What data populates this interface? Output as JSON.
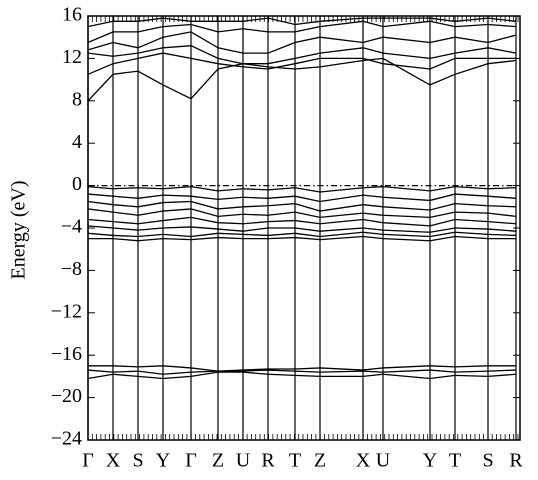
{
  "chart_data": {
    "type": "line",
    "ylabel": "Energy (eV)",
    "xlim": [
      0,
      432
    ],
    "ylim": [
      -24,
      16
    ],
    "yticks": [
      {
        "value": -24,
        "label": "−24"
      },
      {
        "value": -20,
        "label": "−20"
      },
      {
        "value": -16,
        "label": "−16"
      },
      {
        "value": -12,
        "label": "−12"
      },
      {
        "value": -8,
        "label": "−8"
      },
      {
        "value": -4,
        "label": "−4"
      },
      0,
      4,
      8,
      12,
      16
    ],
    "xticks": [
      {
        "value": 0,
        "label": "Γ"
      },
      {
        "value": 25,
        "label": "X"
      },
      {
        "value": 50,
        "label": "S"
      },
      {
        "value": 75,
        "label": "Y"
      },
      {
        "value": 103,
        "label": "Γ"
      },
      {
        "value": 130,
        "label": "Z"
      },
      {
        "value": 155,
        "label": "U"
      },
      {
        "value": 180,
        "label": "R"
      },
      {
        "value": 207,
        "label": "T"
      },
      {
        "value": 232,
        "label": "Z"
      },
      {
        "value": 275,
        "label": "X"
      },
      {
        "value": 295,
        "label": "U"
      },
      {
        "value": 342,
        "label": "Y"
      },
      {
        "value": 367,
        "label": "T"
      },
      {
        "value": 400,
        "label": "S"
      },
      {
        "value": 428,
        "label": "R"
      }
    ],
    "hline": 0,
    "x": [
      0,
      25,
      50,
      75,
      103,
      130,
      155,
      180,
      207,
      232,
      275,
      295,
      342,
      367,
      400,
      428
    ],
    "series": [
      {
        "color": "#000000",
        "values": [
          8,
          10.5,
          10.8,
          9.5,
          8.2,
          11,
          11.5,
          11.2,
          11,
          11.2,
          11.8,
          12,
          9.5,
          10.5,
          11.5,
          11.8
        ]
      },
      {
        "color": "#000000",
        "values": [
          10.5,
          11.5,
          12,
          12.5,
          12,
          11.5,
          11.2,
          11,
          11.5,
          12,
          12,
          11.5,
          11,
          12,
          12,
          12
        ]
      },
      {
        "color": "#000000",
        "values": [
          12.5,
          12.2,
          12.5,
          13,
          13.2,
          12,
          11.5,
          11.5,
          12,
          12.5,
          13,
          12.5,
          12,
          12.5,
          13,
          12.5
        ]
      },
      {
        "color": "#000000",
        "values": [
          12.8,
          13.5,
          13,
          14,
          14.5,
          13,
          12.5,
          12.5,
          13.5,
          14,
          13.5,
          14,
          13.5,
          14,
          13.5,
          14.2
        ]
      },
      {
        "color": "#000000",
        "values": [
          13.5,
          14.5,
          14.5,
          15,
          15.2,
          14.5,
          14.8,
          14.5,
          14.5,
          15,
          15.5,
          15,
          15.5,
          15,
          15.2,
          15
        ]
      },
      {
        "color": "#000000",
        "values": [
          15,
          15.5,
          15.5,
          15.8,
          15.5,
          15.5,
          15.5,
          15.8,
          15.2,
          15.5,
          15.8,
          15.8,
          15.8,
          15.5,
          15.8,
          15.5
        ]
      },
      {
        "color": "#000000",
        "values": [
          -0.1,
          -0.3,
          -0.2,
          -0.3,
          -0.1,
          -0.5,
          -0.3,
          -0.4,
          -0.2,
          -0.6,
          -0.2,
          -0.1,
          -0.5,
          -0.1,
          -0.3,
          -0.2
        ]
      },
      {
        "color": "#000000",
        "values": [
          -0.8,
          -1,
          -1.2,
          -0.9,
          -1,
          -1.3,
          -1.1,
          -1.2,
          -1,
          -1.5,
          -0.9,
          -1.1,
          -1.4,
          -0.8,
          -1,
          -1.2
        ]
      },
      {
        "color": "#000000",
        "values": [
          -1.5,
          -1.8,
          -2,
          -1.6,
          -1.5,
          -2.2,
          -2,
          -1.9,
          -1.7,
          -2.4,
          -1.8,
          -2,
          -2.3,
          -1.7,
          -1.9,
          -2
        ]
      },
      {
        "color": "#000000",
        "values": [
          -2.2,
          -2.5,
          -2.8,
          -2.4,
          -2.2,
          -2.9,
          -2.7,
          -2.8,
          -2.5,
          -3,
          -2.6,
          -2.8,
          -3,
          -2.5,
          -2.6,
          -2.9
        ]
      },
      {
        "color": "#000000",
        "values": [
          -3.2,
          -3.4,
          -3.6,
          -3.3,
          -3,
          -3.5,
          -3.6,
          -3.4,
          -3.3,
          -3.6,
          -3.2,
          -3.5,
          -3.8,
          -3.2,
          -3.4,
          -3.6
        ]
      },
      {
        "color": "#000000",
        "values": [
          -3.8,
          -4,
          -4.2,
          -4,
          -3.9,
          -4.1,
          -4.3,
          -4,
          -4,
          -4.3,
          -4,
          -4.2,
          -4.4,
          -4,
          -4.1,
          -4.3
        ]
      },
      {
        "color": "#000000",
        "values": [
          -4.5,
          -4.7,
          -4.8,
          -4.6,
          -4.8,
          -4.5,
          -4.6,
          -4.7,
          -4.5,
          -4.8,
          -4.4,
          -4.6,
          -4.8,
          -4.4,
          -4.6,
          -4.7
        ]
      },
      {
        "color": "#000000",
        "values": [
          -5,
          -5,
          -5.2,
          -5,
          -5.1,
          -4.9,
          -5,
          -5,
          -4.9,
          -5.1,
          -4.8,
          -5,
          -5.2,
          -4.8,
          -5,
          -5
        ]
      },
      {
        "color": "#000000",
        "values": [
          -17,
          -17,
          -17.1,
          -17,
          -17.2,
          -17.5,
          -17.4,
          -17.3,
          -17.3,
          -17.2,
          -17.4,
          -17.2,
          -17,
          -17.1,
          -17,
          -17
        ]
      },
      {
        "color": "#000000",
        "values": [
          -17.4,
          -17.6,
          -17.5,
          -17.8,
          -17.6,
          -17.5,
          -17.5,
          -17.4,
          -17.5,
          -17.6,
          -17.5,
          -17.6,
          -17.4,
          -17.6,
          -17.5,
          -17.4
        ]
      },
      {
        "color": "#000000",
        "values": [
          -18.2,
          -17.8,
          -18,
          -18.2,
          -18,
          -17.6,
          -17.6,
          -17.8,
          -17.9,
          -18,
          -18,
          -17.8,
          -18.2,
          -17.9,
          -18,
          -17.8
        ]
      }
    ]
  }
}
